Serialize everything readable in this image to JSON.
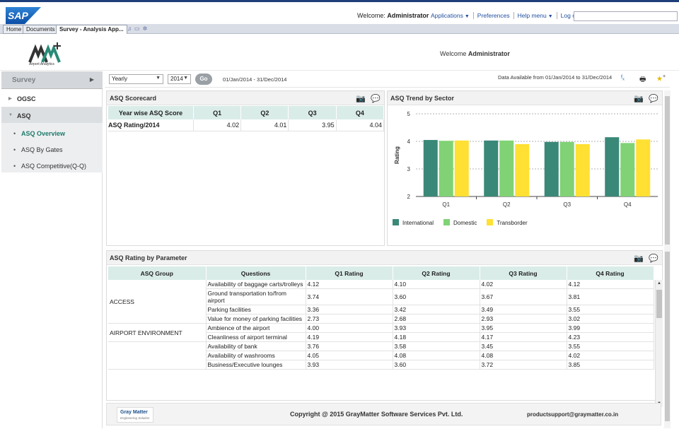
{
  "topbar": {
    "brand": "SAP",
    "welcome_prefix": "Welcome:",
    "user": "Administrator",
    "links": [
      {
        "label": "Applications",
        "has_menu": true
      },
      {
        "label": "Preferences",
        "has_menu": false
      },
      {
        "label": "Help menu",
        "has_menu": true
      },
      {
        "label": "Log off",
        "has_menu": false
      }
    ],
    "search_placeholder": ""
  },
  "tabs": [
    {
      "label": "Home",
      "active": false
    },
    {
      "label": "Documents",
      "active": false
    },
    {
      "label": "Survey - Analysis App...",
      "active": true
    }
  ],
  "header": {
    "logo_caption": "Airport Analytics",
    "welcome_label": "Welcome",
    "welcome_user": "Administrator"
  },
  "sidebar": {
    "root": {
      "label": "Survey"
    },
    "items": [
      {
        "label": "OGSC",
        "expanded": false
      },
      {
        "label": "ASQ",
        "expanded": true
      }
    ],
    "sub_items": [
      {
        "label": "ASQ Overview",
        "active": true
      },
      {
        "label": "ASQ By Gates",
        "active": false
      },
      {
        "label": "ASQ Competitive(Q-Q)",
        "active": false
      }
    ]
  },
  "filters": {
    "period": "Yearly",
    "year": "2014",
    "go_label": "Go",
    "date_range": "01/Jan/2014 - 31/Dec/2014",
    "data_available": "Data Available from 01/Jan/2014 to 31/Dec/2014"
  },
  "scorecard": {
    "title": "ASQ Scorecard",
    "columns": [
      "Year wise ASQ Score",
      "Q1",
      "Q2",
      "Q3",
      "Q4"
    ],
    "row": {
      "label": "ASQ Rating/2014",
      "values": [
        "4.02",
        "4.01",
        "3.95",
        "4.04"
      ]
    }
  },
  "trend": {
    "title": "ASQ Trend by Sector"
  },
  "chart_data": {
    "type": "bar",
    "categories": [
      "Q1",
      "Q2",
      "Q3",
      "Q4"
    ],
    "series": [
      {
        "name": "International",
        "color": "#3a8878",
        "values": [
          4.05,
          4.03,
          3.98,
          4.15
        ]
      },
      {
        "name": "Domestic",
        "color": "#80d275",
        "values": [
          4.02,
          4.03,
          3.98,
          3.94
        ]
      },
      {
        "name": "Transborder",
        "color": "#ffe033",
        "values": [
          4.03,
          3.9,
          3.9,
          4.07
        ]
      }
    ],
    "ylabel": "Rating",
    "xlabel": "",
    "ylim": [
      2,
      5
    ],
    "yticks": [
      "2",
      "3",
      "4",
      "5"
    ],
    "grid": true,
    "legend": "bottom-left"
  },
  "parameters": {
    "title": "ASQ Rating by Parameter",
    "columns": [
      "ASQ Group",
      "Questions",
      "Q1 Rating",
      "Q2 Rating",
      "Q3 Rating",
      "Q4 Rating"
    ],
    "groups": [
      {
        "name": "ACCESS",
        "rows": [
          {
            "question": "Availability of baggage carts/trolleys",
            "q1": "4.12",
            "q2": "4.10",
            "q3": "4.02",
            "q4": "4.12"
          },
          {
            "question": "Ground transportation to/from airport",
            "q1": "3.74",
            "q2": "3.60",
            "q3": "3.67",
            "q4": "3.81"
          },
          {
            "question": "Parking facilities",
            "q1": "3.36",
            "q2": "3.42",
            "q3": "3.49",
            "q4": "3.55"
          },
          {
            "question": "Value for money of parking facilities",
            "q1": "2.73",
            "q2": "2.68",
            "q3": "2.93",
            "q4": "3.02"
          }
        ]
      },
      {
        "name": "AIRPORT ENVIRONMENT",
        "rows": [
          {
            "question": "Ambience of the airport",
            "q1": "4.00",
            "q2": "3.93",
            "q3": "3.95",
            "q4": "3.99"
          },
          {
            "question": "Cleanliness of airport terminal",
            "q1": "4.19",
            "q2": "4.18",
            "q3": "4.17",
            "q4": "4.23"
          }
        ]
      },
      {
        "name": "",
        "rows": [
          {
            "question": "Availability of bank",
            "q1": "3.76",
            "q2": "3.58",
            "q3": "3.45",
            "q4": "3.55"
          },
          {
            "question": "Availability of washrooms",
            "q1": "4.05",
            "q2": "4.08",
            "q3": "4.08",
            "q4": "4.02"
          },
          {
            "question": "Business/Executive lounges",
            "q1": "3.93",
            "q2": "3.60",
            "q3": "3.72",
            "q4": "3.85"
          }
        ]
      }
    ]
  },
  "footer": {
    "company_logo_line1": "Gray Matter",
    "company_logo_line2": "Engineering Solution",
    "copyright": "Copyright @ 2015 GrayMatter Software Services Pvt. Ltd.",
    "support": "productsupport@graymatter.co.in"
  },
  "icons": {
    "camera": "camera-icon",
    "comment": "comment-icon",
    "print": "print-icon",
    "favorite": "favorite-add-icon",
    "formula": "formula-icon"
  }
}
